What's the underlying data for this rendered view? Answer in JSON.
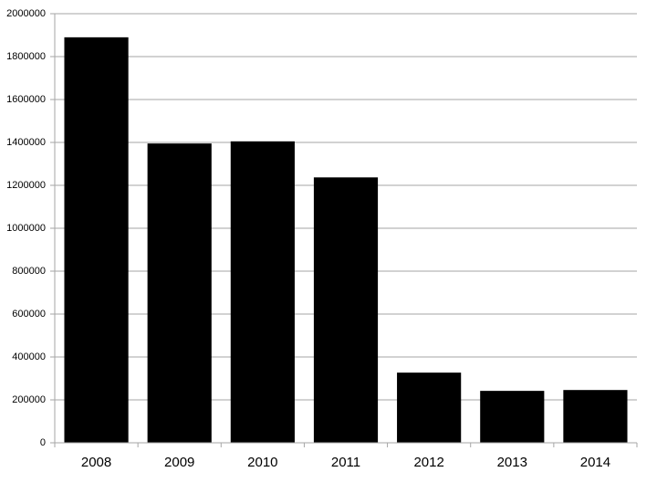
{
  "chart_data": {
    "type": "bar",
    "categories": [
      "2008",
      "2009",
      "2010",
      "2011",
      "2012",
      "2013",
      "2014"
    ],
    "values": [
      1890000,
      1395000,
      1405000,
      1237000,
      327000,
      242000,
      246000
    ],
    "color": "#000000",
    "ylim": [
      0,
      2000000
    ],
    "yticks": [
      0,
      200000,
      400000,
      600000,
      800000,
      1000000,
      1200000,
      1400000,
      1600000,
      1800000,
      2000000
    ],
    "grid": true
  }
}
